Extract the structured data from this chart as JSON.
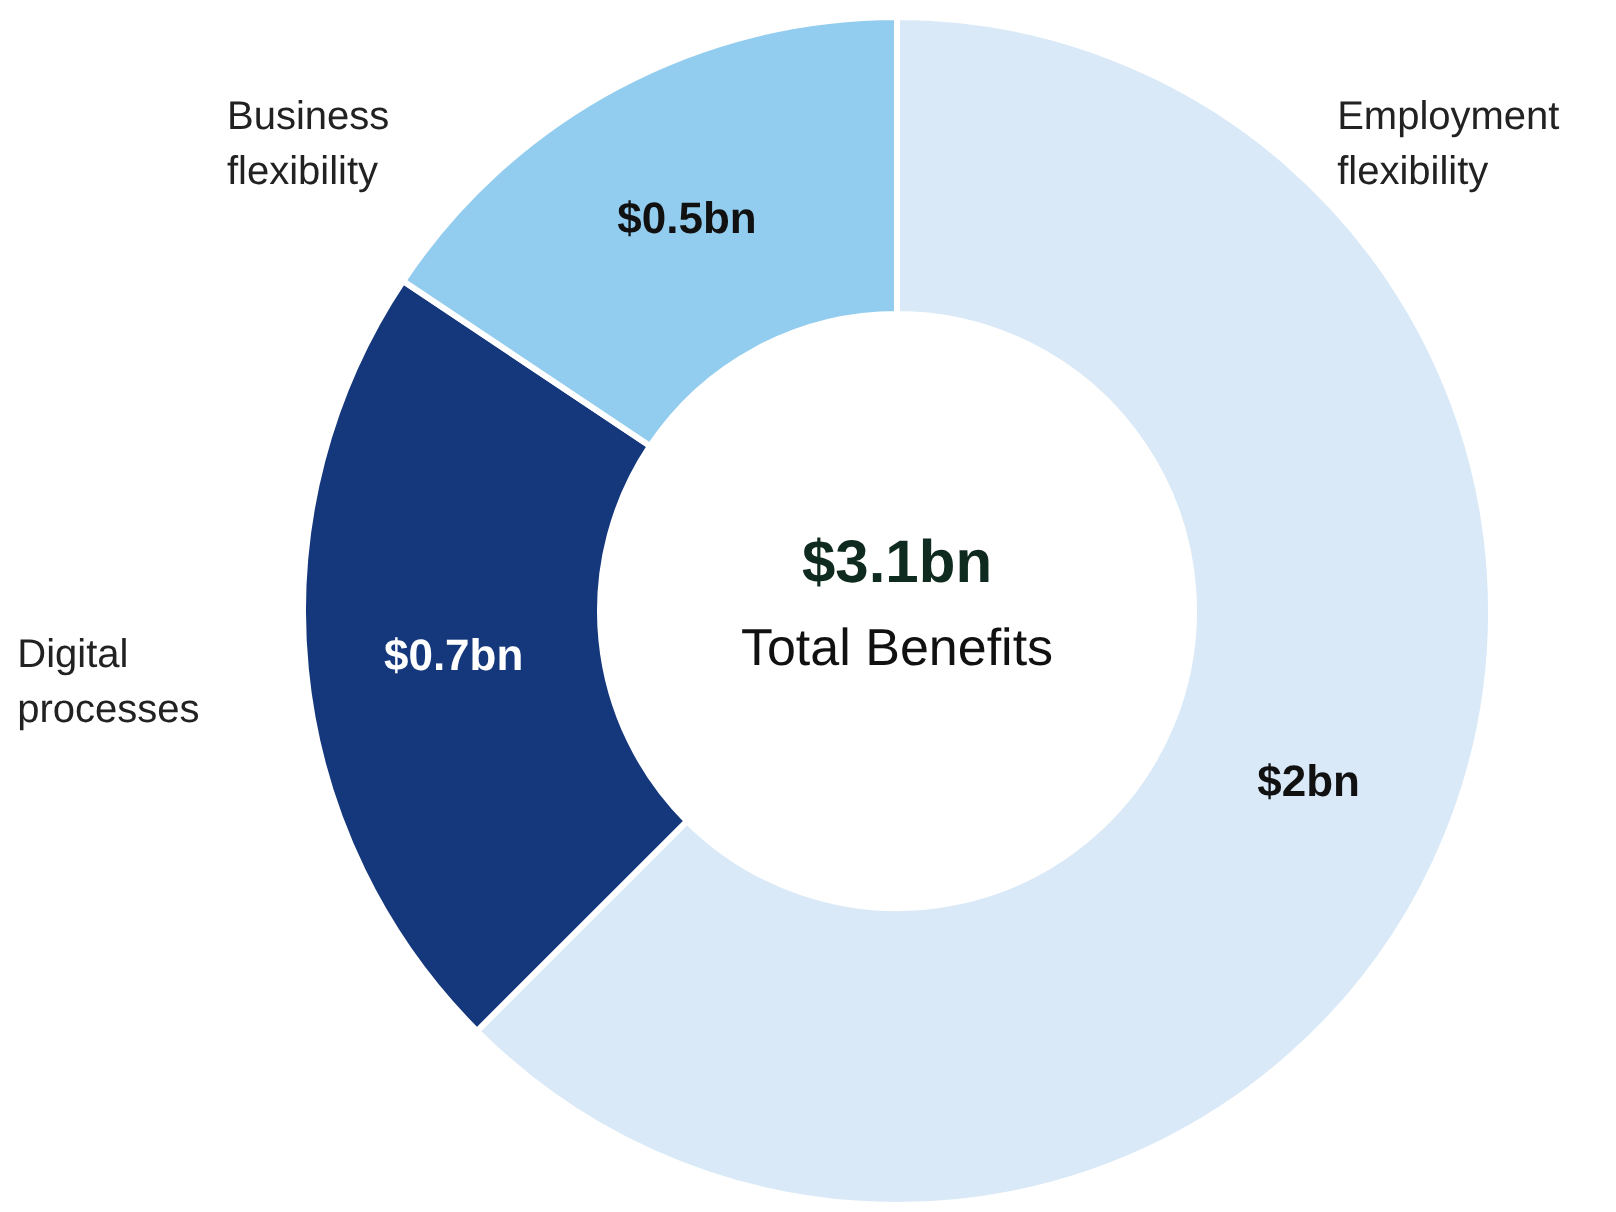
{
  "chart_data": {
    "type": "donut",
    "title": "$3.1bn",
    "subtitle": "Total Benefits",
    "categories": [
      "Employment flexibility",
      "Digital processes",
      "Business flexibility"
    ],
    "values": [
      2,
      0.7,
      0.5
    ],
    "colors": [
      "#d9e9f7",
      "#15387c",
      "#92cdef"
    ],
    "value_labels": [
      "$2bn",
      "$0.7bn",
      "$0.5bn"
    ]
  }
}
